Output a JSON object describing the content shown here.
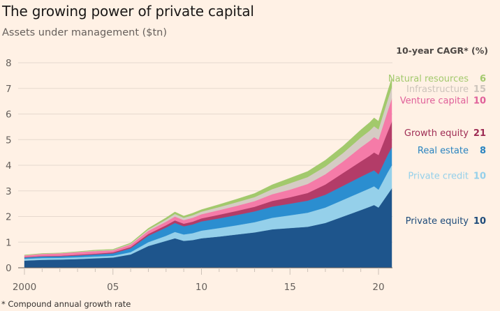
{
  "header": {
    "title": "The growing power of private capital",
    "subtitle": "Assets under management ($tn)"
  },
  "footnote": "* Compound annual growth rate",
  "chart_data": {
    "type": "area",
    "stacked": true,
    "title": "The growing power of private capital",
    "subtitle": "Assets under management ($tn)",
    "xlabel": "",
    "ylabel": "Assets under management ($tn)",
    "ylim": [
      0,
      8
    ],
    "xlim": [
      2000,
      2020.75
    ],
    "yticks": [
      "0",
      "1",
      "2",
      "3",
      "4",
      "5",
      "6",
      "7",
      "8"
    ],
    "xticks": [
      {
        "value": 2000,
        "label": "2000"
      },
      {
        "value": 2005,
        "label": "05"
      },
      {
        "value": 2010,
        "label": "10"
      },
      {
        "value": 2015,
        "label": "15"
      },
      {
        "value": 2020,
        "label": "20"
      }
    ],
    "grid": true,
    "legend_title": "10-year CAGR* (%)",
    "legend_placement": "right",
    "x": [
      2000,
      2001,
      2002,
      2003,
      2004,
      2005,
      2006,
      2007,
      2008,
      2008.5,
      2009,
      2009.5,
      2010,
      2011,
      2012,
      2013,
      2014,
      2015,
      2016,
      2017,
      2018,
      2019,
      2019.5,
      2019.75,
      2020,
      2020.5,
      2020.75
    ],
    "series": [
      {
        "name": "Private equity",
        "cagr": "10",
        "color": "#1e558c",
        "values": [
          0.28,
          0.31,
          0.32,
          0.34,
          0.37,
          0.4,
          0.52,
          0.85,
          1.05,
          1.15,
          1.05,
          1.08,
          1.15,
          1.22,
          1.3,
          1.38,
          1.5,
          1.55,
          1.6,
          1.75,
          2.0,
          2.25,
          2.38,
          2.45,
          2.35,
          2.85,
          3.1
        ]
      },
      {
        "name": "Private credit",
        "cagr": "10",
        "color": "#95d0ea",
        "values": [
          0.07,
          0.07,
          0.07,
          0.07,
          0.07,
          0.07,
          0.09,
          0.15,
          0.2,
          0.25,
          0.25,
          0.27,
          0.3,
          0.33,
          0.36,
          0.4,
          0.45,
          0.5,
          0.55,
          0.6,
          0.65,
          0.7,
          0.72,
          0.73,
          0.7,
          0.85,
          0.9
        ]
      },
      {
        "name": "Real estate",
        "cagr": "8",
        "color": "#2b8ed0",
        "values": [
          0.05,
          0.06,
          0.06,
          0.07,
          0.08,
          0.09,
          0.15,
          0.25,
          0.32,
          0.35,
          0.32,
          0.34,
          0.36,
          0.38,
          0.4,
          0.42,
          0.44,
          0.45,
          0.47,
          0.5,
          0.55,
          0.6,
          0.62,
          0.62,
          0.6,
          0.68,
          0.7
        ]
      },
      {
        "name": "Growth equity",
        "cagr": "21",
        "color": "#b33c68",
        "values": [
          0.02,
          0.02,
          0.02,
          0.03,
          0.03,
          0.04,
          0.05,
          0.07,
          0.09,
          0.1,
          0.1,
          0.11,
          0.12,
          0.14,
          0.16,
          0.18,
          0.22,
          0.25,
          0.3,
          0.4,
          0.5,
          0.6,
          0.65,
          0.7,
          0.75,
          0.9,
          1.0
        ]
      },
      {
        "name": "Venture capital",
        "cagr": "10",
        "color": "#f57ba8",
        "values": [
          0.06,
          0.08,
          0.09,
          0.1,
          0.1,
          0.08,
          0.1,
          0.12,
          0.14,
          0.15,
          0.14,
          0.15,
          0.16,
          0.18,
          0.2,
          0.22,
          0.26,
          0.3,
          0.35,
          0.4,
          0.45,
          0.55,
          0.58,
          0.6,
          0.6,
          0.8,
          0.9
        ]
      },
      {
        "name": "Infrastructure",
        "cagr": "15",
        "color": "#d5ccc4",
        "values": [
          0.01,
          0.01,
          0.01,
          0.01,
          0.02,
          0.02,
          0.03,
          0.05,
          0.08,
          0.1,
          0.09,
          0.1,
          0.1,
          0.12,
          0.14,
          0.16,
          0.2,
          0.25,
          0.27,
          0.3,
          0.33,
          0.38,
          0.4,
          0.42,
          0.4,
          0.43,
          0.45
        ]
      },
      {
        "name": "Natural resources",
        "cagr": "6",
        "color": "#a2c96c",
        "values": [
          0.01,
          0.01,
          0.01,
          0.01,
          0.02,
          0.02,
          0.03,
          0.05,
          0.07,
          0.08,
          0.07,
          0.08,
          0.08,
          0.1,
          0.12,
          0.14,
          0.17,
          0.2,
          0.22,
          0.25,
          0.27,
          0.3,
          0.32,
          0.33,
          0.32,
          0.34,
          0.35
        ]
      }
    ],
    "legend": [
      {
        "name": "Natural resources",
        "cagr": "6",
        "label_color": "#a2c96c",
        "value_color": "#a2c96c",
        "position_value": 7.4
      },
      {
        "name": "Infrastructure",
        "cagr": "15",
        "label_color": "#cdc4bc",
        "value_color": "#cdc4bc",
        "position_value": 7.0
      },
      {
        "name": "Venture capital",
        "cagr": "10",
        "label_color": "#e0609a",
        "value_color": "#e0609a",
        "position_value": 6.55
      },
      {
        "name": "Growth equity",
        "cagr": "21",
        "label_color": "#9e2c54",
        "value_color": "#9e2c54",
        "position_value": 5.28
      },
      {
        "name": "Real estate",
        "cagr": "8",
        "label_color": "#2a84c0",
        "value_color": "#2a84c0",
        "position_value": 4.6
      },
      {
        "name": "Private credit",
        "cagr": "10",
        "label_color": "#95d0ea",
        "value_color": "#95d0ea",
        "position_value": 3.6
      },
      {
        "name": "Private equity",
        "cagr": "10",
        "label_color": "#1e4b7a",
        "value_color": "#1e4b7a",
        "position_value": 1.85
      }
    ]
  }
}
